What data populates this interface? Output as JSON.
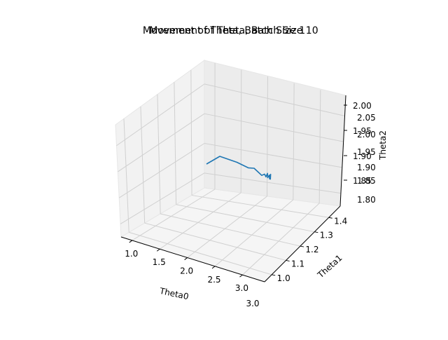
{
  "chart_data": {
    "type": "line3d",
    "titles": [
      "Movement of Theta, Batch Size 1",
      "Movement of Theta, Batch Size 10"
    ],
    "xlabel": "Theta0",
    "ylabel": "Theta1",
    "zlabel": "Theta2",
    "x_ticks": [
      "1.0",
      "1.5",
      "2.0",
      "2.5",
      "3.0"
    ],
    "x_tick_ghost": "3.0",
    "y_ticks": [
      "1.0",
      "1.1",
      "1.2",
      "1.3",
      "1.4"
    ],
    "z_ticks_front": [
      "1.85",
      "1.90",
      "1.95",
      "2.00"
    ],
    "z_ticks_back": [
      "1.80",
      "1.85",
      "1.90",
      "1.95",
      "2.00",
      "2.05"
    ],
    "grid": true,
    "series": [
      {
        "color": "#1f77b4",
        "path": [
          [
            1.15,
            1.1,
            1.92
          ],
          [
            1.35,
            1.2,
            1.94
          ],
          [
            1.65,
            1.25,
            1.93
          ],
          [
            1.85,
            1.28,
            1.92
          ],
          [
            1.95,
            1.3,
            1.92
          ],
          [
            2.05,
            1.3,
            1.91
          ],
          [
            2.1,
            1.29,
            1.905
          ],
          [
            2.15,
            1.3,
            1.908
          ],
          [
            2.18,
            1.29,
            1.902
          ],
          [
            2.2,
            1.31,
            1.91
          ],
          [
            2.22,
            1.28,
            1.9
          ],
          [
            2.24,
            1.3,
            1.906
          ],
          [
            2.25,
            1.29,
            1.898
          ],
          [
            2.26,
            1.31,
            1.908
          ],
          [
            2.27,
            1.28,
            1.896
          ]
        ]
      }
    ]
  }
}
